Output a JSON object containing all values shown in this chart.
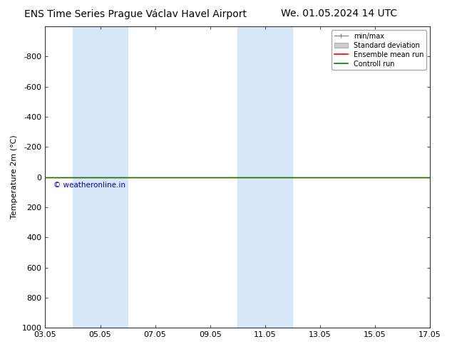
{
  "title_left": "ENS Time Series Prague Václav Havel Airport",
  "title_right": "We. 01.05.2024 14 UTC",
  "ylabel": "Temperature 2m (°C)",
  "xtick_labels": [
    "03.05",
    "05.05",
    "07.05",
    "09.05",
    "11.05",
    "13.05",
    "15.05",
    "17.05"
  ],
  "xtick_positions": [
    0,
    2,
    4,
    6,
    8,
    10,
    12,
    14
  ],
  "ylim_top": -1000,
  "ylim_bottom": 1000,
  "ytick_positions": [
    -800,
    -600,
    -400,
    -200,
    0,
    200,
    400,
    600,
    800,
    1000
  ],
  "ytick_labels": [
    "-800",
    "-600",
    "-400",
    "-200",
    "0",
    "200",
    "400",
    "600",
    "800",
    "1000"
  ],
  "bg_color": "#ffffff",
  "plot_bg_color": "#ffffff",
  "shade_regions": [
    {
      "x_start": 1.0,
      "x_end": 3.0
    },
    {
      "x_start": 7.0,
      "x_end": 9.0
    }
  ],
  "shade_color": "#d6e8f7",
  "green_line_y": 0,
  "green_line_color": "#008000",
  "red_line_y": 0,
  "red_line_color": "#ff0000",
  "minmax_line_color": "#888888",
  "std_fill_color": "#cccccc",
  "watermark_text": "© weatheronline.in",
  "watermark_color": "#0000cc",
  "watermark_x_data": 0.3,
  "watermark_y_data": 30,
  "legend_entries": [
    "min/max",
    "Standard deviation",
    "Ensemble mean run",
    "Controll run"
  ],
  "legend_colors": [
    "#888888",
    "#cccccc",
    "#ff0000",
    "#008000"
  ],
  "title_fontsize": 10,
  "axis_fontsize": 8,
  "tick_fontsize": 8
}
